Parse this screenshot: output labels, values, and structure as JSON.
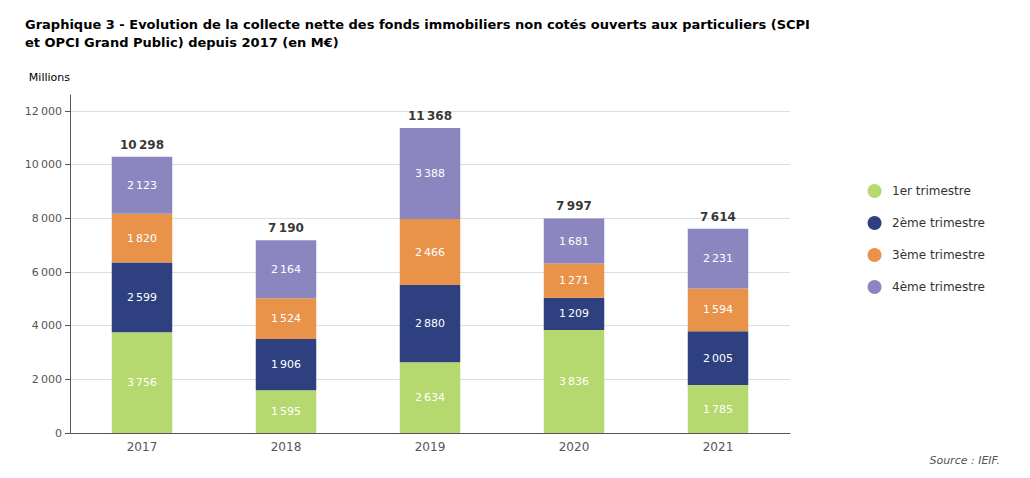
{
  "chart_data": {
    "type": "bar",
    "stacked": true,
    "data_labels": true,
    "grid": true,
    "legend": "right",
    "title": "Graphique 3 - Evolution de la collecte nette des fonds immobiliers non cotés ouverts aux particuliers (SCPI\net OPCI Grand Public) depuis 2017 (en M€)",
    "ylabel": "Millions",
    "annotations": [
      {
        "text": "Source : IEIF."
      }
    ],
    "categories": [
      "2017",
      "2018",
      "2019",
      "2020",
      "2021"
    ],
    "series": [
      {
        "name": "1er trimestre",
        "color": "#b5d96f",
        "values": [
          3756,
          1595,
          2634,
          3836,
          1785
        ],
        "value_labels": [
          "3 756",
          "1 595",
          "2 634",
          "3 836",
          "1 785"
        ]
      },
      {
        "name": "2ème trimestre",
        "color": "#2e4080",
        "values": [
          2599,
          1906,
          2880,
          1209,
          2005
        ],
        "value_labels": [
          "2 599",
          "1 906",
          "2 880",
          "1 209",
          "2 005"
        ]
      },
      {
        "name": "3ème trimestre",
        "color": "#e8924a",
        "values": [
          1820,
          1524,
          2466,
          1271,
          1594
        ],
        "value_labels": [
          "1 820",
          "1 524",
          "2 466",
          "1 271",
          "1 594"
        ]
      },
      {
        "name": "4ème trimestre",
        "color": "#8b86c0",
        "values": [
          2123,
          2164,
          3388,
          1681,
          2231
        ],
        "value_labels": [
          "2 123",
          "2 164",
          "3 388",
          "1 681",
          "2 231"
        ]
      }
    ],
    "totals": [
      10298,
      7190,
      11368,
      7997,
      7614
    ],
    "total_labels": [
      "10 298",
      "7 190",
      "11 368",
      "7 997",
      "7 614"
    ],
    "ylim": [
      0,
      12600
    ],
    "yticks": [
      0,
      {
        "value": 2000,
        "label": "2 000"
      },
      {
        "value": 4000,
        "label": "4 000"
      },
      {
        "value": 6000,
        "label": "6 000"
      },
      {
        "value": 8000,
        "label": "8 000"
      },
      {
        "value": 10000,
        "label": "10 000"
      },
      {
        "value": 12000,
        "label": "12 000"
      }
    ]
  }
}
